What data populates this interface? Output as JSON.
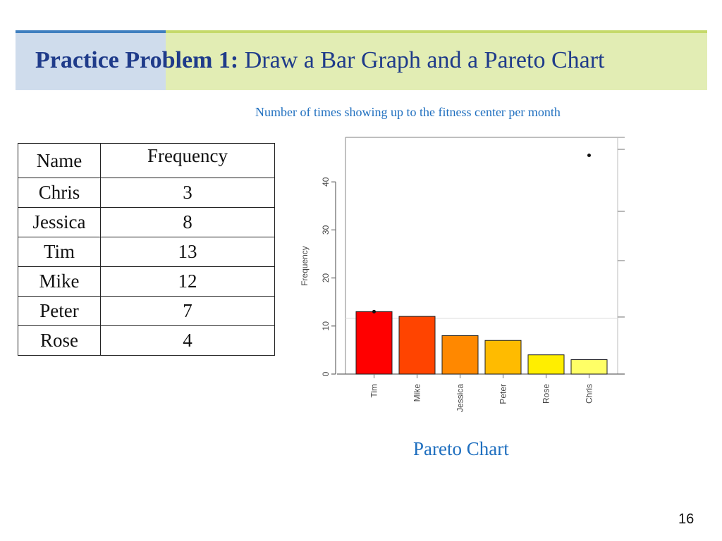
{
  "slide": {
    "title_bold": "Practice Problem 1:",
    "title_rest": " Draw a Bar Graph and a Pareto Chart",
    "subtitle": "Number of times showing up to the fitness center per month",
    "caption": "Pareto Chart",
    "page_number": "16"
  },
  "table": {
    "headers": [
      "Name",
      "Frequency"
    ],
    "rows": [
      {
        "name": "Chris",
        "frequency": "3"
      },
      {
        "name": "Jessica",
        "frequency": "8"
      },
      {
        "name": "Tim",
        "frequency": "13"
      },
      {
        "name": "Mike",
        "frequency": "12"
      },
      {
        "name": "Peter",
        "frequency": "7"
      },
      {
        "name": "Rose",
        "frequency": "4"
      }
    ]
  },
  "chart_data": {
    "type": "bar",
    "categories": [
      "Tim",
      "Mike",
      "Jessica",
      "Peter",
      "Rose",
      "Chris"
    ],
    "values": [
      13,
      12,
      8,
      7,
      4,
      3
    ],
    "colors": [
      "#ff0000",
      "#ff4400",
      "#ff8800",
      "#ffbb00",
      "#ffee00",
      "#ffff66"
    ],
    "ylabel": "Frequency",
    "yticks": [
      0,
      10,
      20,
      30,
      40
    ],
    "ylim": [
      0,
      47
    ],
    "grid": false,
    "cumulative_points": [
      13,
      47
    ]
  }
}
